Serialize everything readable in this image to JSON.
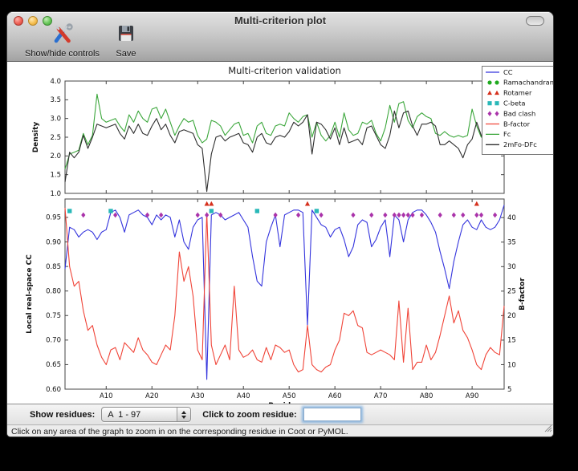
{
  "window": {
    "title": "Multi-criterion plot"
  },
  "toolbar": {
    "controls_label": "Show/hide controls",
    "save_label": "Save"
  },
  "controls": {
    "show_residues_label": "Show residues:",
    "residue_range_value": "A  1 - 97",
    "zoom_label": "Click to zoom residue:",
    "zoom_value": ""
  },
  "status": {
    "message": "Click on any area of the graph to zoom in on the corresponding residue in Coot or PyMOL."
  },
  "colors": {
    "cc_line": "#3434dd",
    "bfactor_line": "#f04438",
    "fc_line": "#3aa63a",
    "map_line": "#2e2e2e",
    "ramachandran": "#1faa1f",
    "rotamer": "#d6301d",
    "cbeta": "#29b8b8",
    "bad_clash": "#aa33aa",
    "spine": "#444444"
  },
  "chart_data": {
    "type": "line",
    "suptitle": "Multi-criterion validation",
    "xlabel": "Residue",
    "x_range": [
      1,
      97
    ],
    "x_ticks": [
      {
        "v": 10,
        "label": "A10"
      },
      {
        "v": 20,
        "label": "A20"
      },
      {
        "v": 30,
        "label": "A30"
      },
      {
        "v": 40,
        "label": "A40"
      },
      {
        "v": 50,
        "label": "A50"
      },
      {
        "v": 60,
        "label": "A60"
      },
      {
        "v": 70,
        "label": "A70"
      },
      {
        "v": 80,
        "label": "A80"
      },
      {
        "v": 90,
        "label": "A90"
      }
    ],
    "top": {
      "ylabel": "Density",
      "ylim": [
        1.0,
        4.0
      ],
      "yticks": [
        {
          "v": 1.0,
          "label": "1.0"
        },
        {
          "v": 1.5,
          "label": "1.5"
        },
        {
          "v": 2.0,
          "label": "2.0"
        },
        {
          "v": 2.5,
          "label": "2.5"
        },
        {
          "v": 3.0,
          "label": "3.0"
        },
        {
          "v": 3.5,
          "label": "3.5"
        },
        {
          "v": 4.0,
          "label": "4.0"
        }
      ],
      "series": [
        {
          "name": "Fc",
          "color": "#3aa63a",
          "values": [
            1.65,
            2.05,
            2.1,
            2.15,
            2.6,
            2.3,
            2.55,
            3.65,
            3.0,
            2.9,
            2.95,
            3.0,
            2.8,
            2.65,
            3.1,
            2.9,
            3.2,
            3.0,
            2.9,
            3.25,
            3.3,
            3.0,
            3.25,
            2.9,
            2.55,
            2.8,
            3.0,
            2.9,
            2.95,
            2.55,
            2.35,
            2.45,
            2.95,
            2.9,
            2.8,
            2.55,
            2.7,
            2.85,
            2.9,
            2.55,
            2.6,
            2.35,
            2.8,
            2.9,
            2.6,
            2.55,
            2.8,
            2.85,
            2.8,
            3.15,
            3.0,
            2.9,
            3.05,
            3.1,
            2.5,
            2.9,
            2.55,
            2.4,
            2.55,
            2.9,
            2.5,
            3.15,
            2.7,
            2.55,
            2.6,
            2.9,
            2.85,
            2.95,
            2.6,
            2.4,
            2.75,
            3.35,
            2.9,
            3.4,
            3.45,
            2.95,
            2.75,
            3.05,
            3.15,
            3.05,
            3.0,
            2.6,
            2.55,
            2.65,
            2.55,
            2.5,
            2.55,
            2.5,
            2.55,
            3.25,
            2.8,
            2.5,
            2.55,
            2.7,
            2.5,
            3.0,
            3.5
          ]
        },
        {
          "name": "2mFo-DFc",
          "color": "#2e2e2e",
          "values": [
            1.3,
            2.1,
            1.95,
            2.1,
            2.55,
            2.2,
            2.5,
            2.85,
            2.8,
            2.75,
            2.8,
            2.85,
            2.6,
            2.45,
            2.8,
            2.6,
            2.85,
            2.6,
            2.55,
            2.8,
            3.0,
            2.7,
            2.85,
            2.55,
            2.35,
            2.65,
            2.7,
            2.65,
            2.6,
            2.3,
            2.2,
            1.05,
            2.05,
            2.5,
            2.55,
            2.4,
            2.5,
            2.55,
            2.6,
            2.35,
            2.3,
            2.1,
            2.5,
            2.6,
            2.35,
            2.3,
            2.5,
            2.55,
            2.5,
            2.65,
            2.9,
            2.8,
            2.9,
            3.1,
            2.05,
            2.9,
            2.85,
            2.7,
            2.45,
            2.75,
            2.3,
            2.75,
            2.35,
            2.4,
            2.45,
            2.3,
            2.75,
            2.8,
            2.55,
            2.3,
            2.2,
            2.55,
            3.2,
            2.75,
            3.15,
            3.2,
            2.8,
            2.55,
            2.85,
            2.85,
            2.9,
            2.8,
            2.3,
            2.3,
            2.4,
            2.3,
            2.2,
            1.95,
            2.3,
            2.45,
            2.9,
            2.55,
            2.3,
            2.3,
            2.5,
            2.35,
            2.95
          ]
        }
      ]
    },
    "bottom": {
      "ylabel_left": "Local real-space CC",
      "ylim_left": [
        0.6,
        0.9875
      ],
      "yticks_left": [
        {
          "v": 0.6,
          "label": "0.60"
        },
        {
          "v": 0.65,
          "label": "0.65"
        },
        {
          "v": 0.7,
          "label": "0.70"
        },
        {
          "v": 0.75,
          "label": "0.75"
        },
        {
          "v": 0.8,
          "label": "0.80"
        },
        {
          "v": 0.85,
          "label": "0.85"
        },
        {
          "v": 0.9,
          "label": "0.90"
        },
        {
          "v": 0.95,
          "label": "0.95"
        }
      ],
      "ylabel_right": "B-factor",
      "ylim_right": [
        5,
        43.8
      ],
      "yticks_right": [
        {
          "v": 5,
          "label": "5"
        },
        {
          "v": 10,
          "label": "10"
        },
        {
          "v": 15,
          "label": "15"
        },
        {
          "v": 20,
          "label": "20"
        },
        {
          "v": 25,
          "label": "25"
        },
        {
          "v": 30,
          "label": "30"
        },
        {
          "v": 35,
          "label": "35"
        },
        {
          "v": 40,
          "label": "40"
        }
      ],
      "series": [
        {
          "name": "CC",
          "axis": "left",
          "color": "#3434dd",
          "values": [
            0.845,
            0.93,
            0.925,
            0.91,
            0.92,
            0.925,
            0.92,
            0.905,
            0.92,
            0.925,
            0.96,
            0.965,
            0.95,
            0.92,
            0.955,
            0.96,
            0.965,
            0.955,
            0.95,
            0.935,
            0.955,
            0.945,
            0.955,
            0.95,
            0.91,
            0.945,
            0.9,
            0.885,
            0.93,
            0.945,
            0.95,
            0.62,
            0.955,
            0.96,
            0.955,
            0.945,
            0.95,
            0.955,
            0.96,
            0.945,
            0.93,
            0.87,
            0.82,
            0.81,
            0.9,
            0.93,
            0.955,
            0.89,
            0.955,
            0.96,
            0.965,
            0.965,
            0.96,
            0.73,
            0.965,
            0.95,
            0.935,
            0.93,
            0.91,
            0.925,
            0.93,
            0.905,
            0.87,
            0.89,
            0.935,
            0.945,
            0.94,
            0.89,
            0.905,
            0.93,
            0.945,
            0.87,
            0.955,
            0.945,
            0.9,
            0.945,
            0.96,
            0.965,
            0.965,
            0.955,
            0.94,
            0.92,
            0.88,
            0.845,
            0.805,
            0.86,
            0.9,
            0.935,
            0.945,
            0.93,
            0.925,
            0.945,
            0.93,
            0.925,
            0.93,
            0.945,
            0.975
          ]
        },
        {
          "name": "B-factor",
          "axis": "right",
          "color": "#f04438",
          "values": [
            42,
            30,
            26,
            27,
            21,
            17,
            18,
            14,
            11.5,
            10,
            13,
            13.5,
            11,
            14.5,
            13.5,
            12.5,
            15.5,
            13,
            12,
            10.5,
            10,
            12,
            14,
            13,
            20,
            33,
            27,
            30,
            24,
            13,
            11,
            41,
            14,
            10,
            12,
            14,
            11,
            26,
            13,
            11.5,
            12,
            13,
            11,
            10.5,
            13.5,
            11,
            14,
            13.5,
            12.5,
            13,
            10,
            8.5,
            9,
            18,
            10,
            9,
            8.5,
            9.5,
            10,
            13,
            15,
            20.5,
            20,
            21,
            18,
            17.5,
            12.5,
            12,
            12.5,
            13,
            12.5,
            12,
            11,
            23,
            10.5,
            21.5,
            9,
            10.5,
            10.5,
            14,
            11,
            12.5,
            16,
            20,
            24,
            18.5,
            21,
            17,
            15.5,
            13,
            10,
            9,
            12,
            13.5,
            12.5,
            12,
            22
          ]
        }
      ],
      "site_markers": [
        {
          "name": "Ramachandran",
          "shape": "circle",
          "color": "#1faa1f",
          "residues": []
        },
        {
          "name": "Rotamer",
          "shape": "triangle",
          "color": "#d6301d",
          "residues": [
            32,
            33,
            54,
            91
          ]
        },
        {
          "name": "C-beta",
          "shape": "square",
          "color": "#29b8b8",
          "residues": [
            2,
            11,
            33,
            43,
            56
          ]
        },
        {
          "name": "Bad clash",
          "shape": "diamond",
          "color": "#aa33aa",
          "residues": [
            5,
            12,
            19,
            22,
            30,
            32,
            35,
            47,
            52,
            57,
            64,
            68,
            71,
            73,
            74,
            75,
            76,
            77,
            79,
            83,
            86,
            88,
            91,
            92,
            95
          ]
        }
      ]
    },
    "legend": {
      "position": "upper right",
      "entries": [
        {
          "label": "CC",
          "glyph": "line",
          "color": "#3434dd"
        },
        {
          "label": "Ramachandran",
          "glyph": "circle",
          "color": "#1faa1f"
        },
        {
          "label": "Rotamer",
          "glyph": "triangle",
          "color": "#d6301d"
        },
        {
          "label": "C-beta",
          "glyph": "square",
          "color": "#29b8b8"
        },
        {
          "label": "Bad clash",
          "glyph": "diamond",
          "color": "#aa33aa"
        },
        {
          "label": "B-factor",
          "glyph": "line",
          "color": "#f04438"
        },
        {
          "label": "Fc",
          "glyph": "line",
          "color": "#3aa63a"
        },
        {
          "label": "2mFo-DFc",
          "glyph": "line",
          "color": "#2e2e2e"
        }
      ]
    }
  }
}
